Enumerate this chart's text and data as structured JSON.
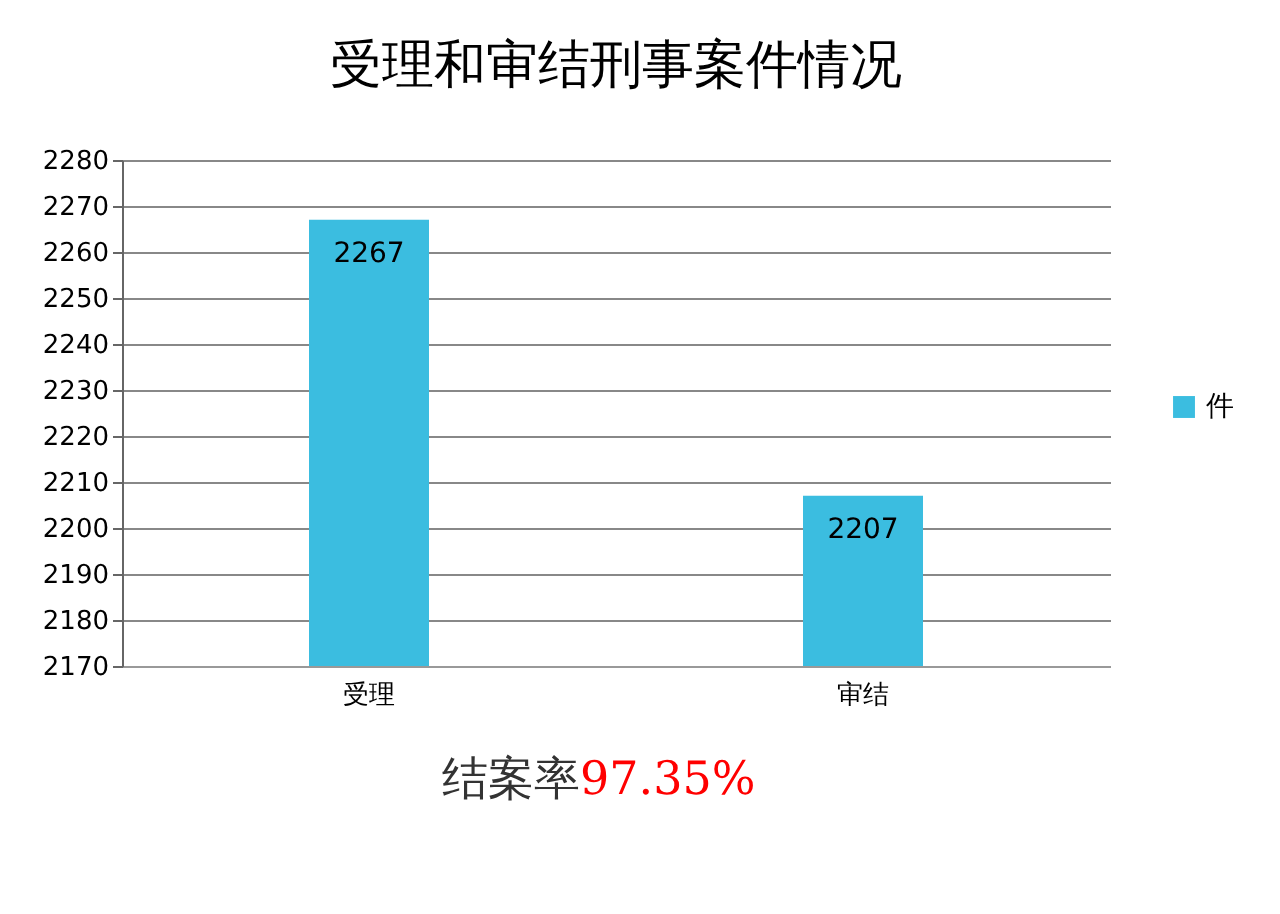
{
  "chart_data": {
    "type": "bar",
    "title": "受理和审结刑事案件情况",
    "categories": [
      "受理",
      "审结"
    ],
    "series": [
      {
        "name": "件",
        "color": "#3bbde0",
        "values": [
          2267,
          2207
        ]
      }
    ],
    "ylim": [
      2170,
      2280
    ],
    "yticks": [
      2170,
      2180,
      2190,
      2200,
      2210,
      2220,
      2230,
      2240,
      2250,
      2260,
      2270,
      2280
    ],
    "grid": "y",
    "legend": "right",
    "data_labels": true,
    "annotations": [
      "结案率",
      "97.35%"
    ]
  }
}
